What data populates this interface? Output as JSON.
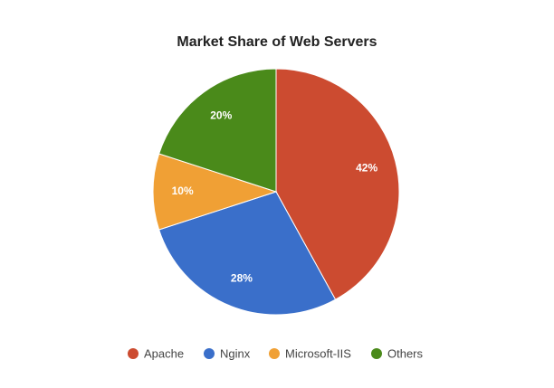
{
  "chart_data": {
    "type": "pie",
    "title": "Market Share of Web Servers",
    "categories": [
      "Apache",
      "Nginx",
      "Microsoft-IIS",
      "Others"
    ],
    "values": [
      42,
      28,
      10,
      20
    ],
    "value_labels": [
      "42%",
      "28%",
      "10%",
      "20%"
    ],
    "colors": [
      "#cc4b30",
      "#3a6fca",
      "#f0a035",
      "#4a8a1a"
    ]
  }
}
